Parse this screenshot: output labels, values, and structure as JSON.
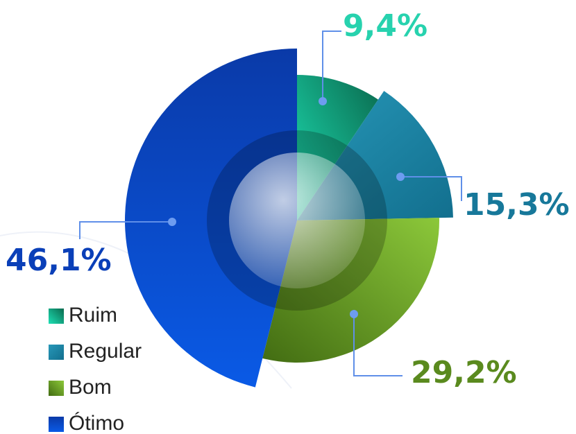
{
  "chart_data": {
    "type": "pie",
    "categories": [
      "Ruim",
      "Regular",
      "Bom",
      "Ótimo"
    ],
    "values": [
      9.4,
      15.3,
      29.2,
      46.1
    ],
    "value_labels": [
      "9,4%",
      "15,3%",
      "29,2%",
      "46,1%"
    ],
    "colors": [
      "#13a57f",
      "#1a86a6",
      "#74aa2c",
      "#0b4fd2"
    ],
    "legend": "bottom-left"
  }
}
